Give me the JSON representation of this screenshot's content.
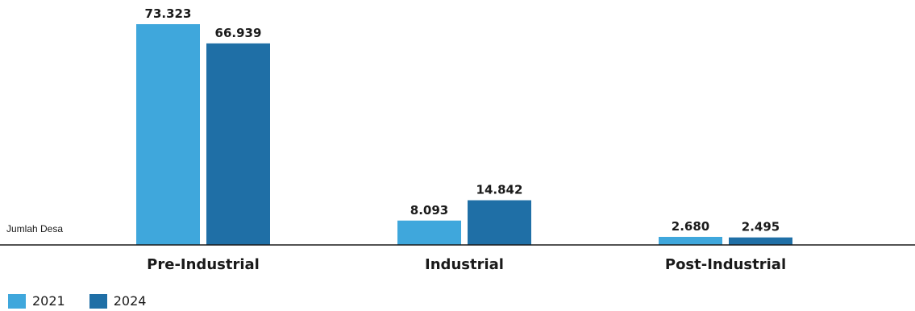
{
  "chart_data": {
    "type": "bar",
    "ylabel": "Jumlah Desa",
    "categories": [
      "Pre-Industrial",
      "Industrial",
      "Post-Industrial"
    ],
    "series": [
      {
        "name": "2021",
        "color": "#3fa7dc",
        "values": [
          73323,
          8093,
          2680
        ],
        "labels": [
          "73.323",
          "8.093",
          "2.680"
        ]
      },
      {
        "name": "2024",
        "color": "#1f6fa6",
        "values": [
          66939,
          14842,
          2495
        ],
        "labels": [
          "66.939",
          "14.842",
          "2.495"
        ]
      }
    ],
    "ylim": [
      0,
      73323
    ],
    "grid": false,
    "legend_position": "bottom-left"
  }
}
